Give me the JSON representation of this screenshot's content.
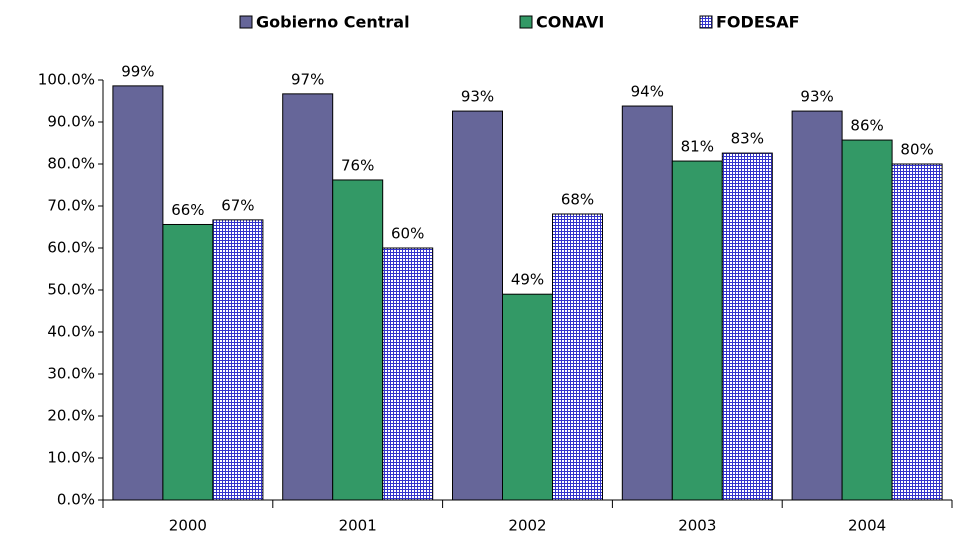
{
  "chart_data": {
    "type": "bar",
    "categories": [
      "2000",
      "2001",
      "2002",
      "2003",
      "2004"
    ],
    "series": [
      {
        "name": "Gobierno Central",
        "color": "#666699",
        "values": [
          98.6,
          96.7,
          92.6,
          93.8,
          92.6
        ],
        "value_labels": [
          "99%",
          "97%",
          "93%",
          "94%",
          "93%"
        ]
      },
      {
        "name": "CONAVI",
        "color": "#339966",
        "values": [
          65.6,
          76.2,
          49,
          80.7,
          85.7
        ],
        "value_labels": [
          "66%",
          "76%",
          "49%",
          "81%",
          "86%"
        ]
      },
      {
        "name": "FODESAF",
        "color": "#3333cc",
        "pattern": "grid",
        "values": [
          66.7,
          60,
          68.1,
          82.6,
          80
        ],
        "value_labels": [
          "67%",
          "60%",
          "68%",
          "83%",
          "80%"
        ]
      }
    ],
    "ylim": [
      0,
      100
    ],
    "yticks": [
      {
        "value": 0,
        "label": "0.0%"
      },
      {
        "value": 10,
        "label": "10.0%"
      },
      {
        "value": 20,
        "label": "20.0%"
      },
      {
        "value": 30,
        "label": "30.0%"
      },
      {
        "value": 40,
        "label": "40.0%"
      },
      {
        "value": 50,
        "label": "50.0%"
      },
      {
        "value": 60,
        "label": "60.0%"
      },
      {
        "value": 70,
        "label": "70.0%"
      },
      {
        "value": 80,
        "label": "80.0%"
      },
      {
        "value": 90,
        "label": "90.0%"
      },
      {
        "value": 100,
        "label": "100.0%"
      }
    ],
    "legend": "top"
  }
}
